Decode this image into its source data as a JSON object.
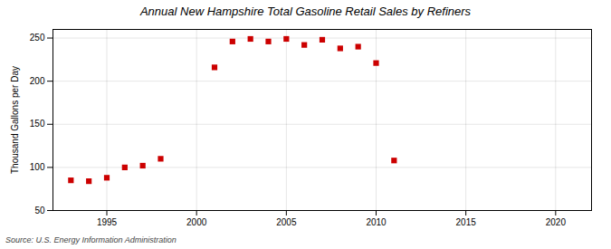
{
  "chart_data": {
    "type": "scatter",
    "title": "Annual New Hampshire Total Gasoline Retail Sales by Refiners",
    "ylabel": "Thousand Gallons per Day",
    "annotations": [
      "Source: U.S. Energy Information Administration"
    ],
    "x": [
      1993,
      1994,
      1995,
      1996,
      1997,
      1998,
      2001,
      2002,
      2003,
      2004,
      2005,
      2006,
      2007,
      2008,
      2009,
      2010,
      2011
    ],
    "values": [
      85,
      84,
      88,
      100,
      102,
      110,
      216,
      246,
      249,
      246,
      249,
      242,
      248,
      238,
      240,
      221,
      108
    ],
    "color": "#cc0000",
    "marker": "square",
    "xlim": [
      1992,
      2022
    ],
    "ylim": [
      50,
      260
    ],
    "xticks": [
      1995,
      2000,
      2005,
      2010,
      2015,
      2020
    ],
    "yticks": [
      50,
      100,
      150,
      200,
      250
    ],
    "grid": true
  }
}
